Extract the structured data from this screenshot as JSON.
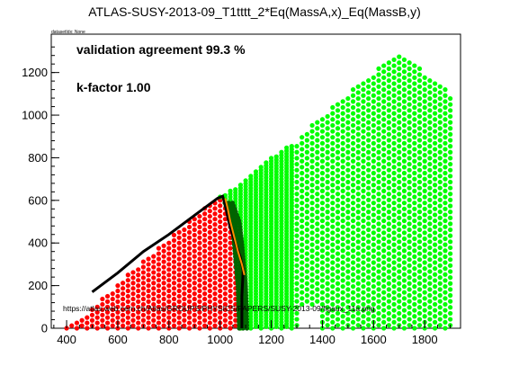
{
  "chart_data": {
    "type": "scatter",
    "title": "ATLAS-SUSY-2013-09_T1tttt_2*Eq(MassA,x)_Eq(MassB,y)",
    "dataset_label": "datasetIdx: None",
    "annotations": {
      "agreement": "validation agreement 99.3 %",
      "kfactor": "k-factor 1.00",
      "url": "https://atlas.web.cern.ch/Atlas/GROUPS/PHYSICS/PAPERS/SUSY-2013-09/figaux_11a.png"
    },
    "xlim": [
      340,
      1940
    ],
    "ylim": [
      0,
      1380
    ],
    "x_ticks": [
      400,
      600,
      800,
      1000,
      1200,
      1400,
      1600,
      1800
    ],
    "y_ticks": [
      0,
      200,
      400,
      600,
      800,
      1000,
      1200
    ],
    "colors": {
      "excluded": "#ff0000",
      "allowed": "#00ff00",
      "near_boundary": "#006400",
      "official_contour": "#000000",
      "validation_contour": "#ff8c00"
    },
    "series": [
      {
        "category": "excluded",
        "color": "#ff0000",
        "region": {
          "x_min": 400,
          "x_max": 1080,
          "y_step_rows": 31,
          "upper_edge": [
            [
              400,
              0
            ],
            [
              500,
              90
            ],
            [
              600,
              210
            ],
            [
              700,
              320
            ],
            [
              800,
              420
            ],
            [
              900,
              520
            ],
            [
              970,
              600
            ],
            [
              1000,
              610
            ],
            [
              1040,
              560
            ],
            [
              1060,
              480
            ],
            [
              1070,
              400
            ],
            [
              1080,
              280
            ],
            [
              1080,
              0
            ]
          ]
        }
      },
      {
        "category": "allowed",
        "color": "#00ff00",
        "region": {
          "x_min": 1000,
          "x_max": 1900,
          "upper_edge": [
            [
              1000,
              620
            ],
            [
              1050,
              650
            ],
            [
              1100,
              700
            ],
            [
              1200,
              800
            ],
            [
              1300,
              880
            ],
            [
              1400,
              1000
            ],
            [
              1500,
              1100
            ],
            [
              1600,
              1200
            ],
            [
              1700,
              1300
            ],
            [
              1800,
              1200
            ],
            [
              1900,
              1100
            ]
          ]
        }
      },
      {
        "category": "near_boundary",
        "color": "#006400",
        "region": {
          "band_center_x": [
            [
              0,
              1090
            ],
            [
              200,
              1085
            ],
            [
              400,
              1070
            ],
            [
              500,
              1060
            ],
            [
              600,
              1030
            ]
          ]
        }
      }
    ],
    "official_contour": [
      [
        500,
        170
      ],
      [
        600,
        260
      ],
      [
        700,
        360
      ],
      [
        800,
        440
      ],
      [
        900,
        530
      ],
      [
        990,
        610
      ],
      [
        1010,
        620
      ],
      [
        1020,
        580
      ],
      [
        1030,
        520
      ],
      [
        1040,
        470
      ],
      [
        1060,
        400
      ],
      [
        1080,
        330
      ],
      [
        1090,
        270
      ],
      [
        1085,
        150
      ],
      [
        1085,
        0
      ]
    ],
    "validation_contour": [
      [
        1020,
        610
      ],
      [
        1030,
        560
      ],
      [
        1040,
        500
      ],
      [
        1055,
        430
      ],
      [
        1070,
        360
      ],
      [
        1085,
        300
      ],
      [
        1095,
        250
      ]
    ]
  }
}
